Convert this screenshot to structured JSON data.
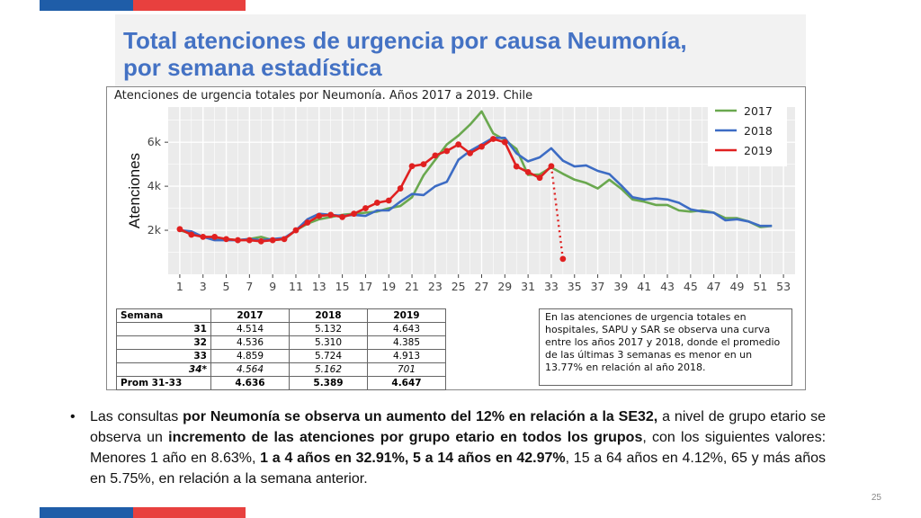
{
  "slide": {
    "title_line1": "Total atenciones de urgencia por causa Neumonía,",
    "title_line2": "por semana estadística",
    "page_number": "25",
    "colors": {
      "title": "#4472c4",
      "accent_blue": "#1f5da8",
      "accent_red": "#e8403e"
    }
  },
  "chart_data": {
    "type": "line",
    "title": "Atenciones de urgencia totales por Neumonía. Años 2017 a 2019. Chile",
    "ylabel": "Atenciones",
    "xlabel": "",
    "x_ticks": [
      "1",
      "3",
      "5",
      "7",
      "9",
      "11",
      "13",
      "15",
      "17",
      "19",
      "21",
      "23",
      "25",
      "27",
      "29",
      "31",
      "33",
      "35",
      "37",
      "39",
      "41",
      "43",
      "45",
      "47",
      "49",
      "51",
      "53"
    ],
    "y_ticks": [
      "2k",
      "4k",
      "6k"
    ],
    "xlim": [
      0,
      54
    ],
    "ylim": [
      0,
      7600
    ],
    "grid": true,
    "legend_position": "top-right",
    "series": [
      {
        "name": "2017",
        "color": "#6aa84f",
        "x": [
          1,
          2,
          3,
          4,
          5,
          6,
          7,
          8,
          9,
          10,
          11,
          12,
          13,
          14,
          15,
          16,
          17,
          18,
          19,
          20,
          21,
          22,
          23,
          24,
          25,
          26,
          27,
          28,
          29,
          30,
          31,
          32,
          33,
          34,
          35,
          36,
          37,
          38,
          39,
          40,
          41,
          42,
          43,
          44,
          45,
          46,
          47,
          48,
          49,
          50,
          51,
          52
        ],
        "y": [
          2000,
          1850,
          1700,
          1650,
          1600,
          1550,
          1600,
          1700,
          1550,
          1600,
          2000,
          2300,
          2500,
          2600,
          2700,
          2750,
          2800,
          2850,
          3000,
          3100,
          3500,
          4500,
          5200,
          5900,
          6300,
          6800,
          7400,
          6400,
          6100,
          5700,
          4514,
          4536,
          4859,
          4564,
          4300,
          4150,
          3900,
          4300,
          3900,
          3400,
          3300,
          3150,
          3150,
          2900,
          2850,
          2900,
          2800,
          2550,
          2550,
          2400,
          2150,
          2200
        ]
      },
      {
        "name": "2018",
        "color": "#3d6cc4",
        "x": [
          1,
          2,
          3,
          4,
          5,
          6,
          7,
          8,
          9,
          10,
          11,
          12,
          13,
          14,
          15,
          16,
          17,
          18,
          19,
          20,
          21,
          22,
          23,
          24,
          25,
          26,
          27,
          28,
          29,
          30,
          31,
          32,
          33,
          34,
          35,
          36,
          37,
          38,
          39,
          40,
          41,
          42,
          43,
          44,
          45,
          46,
          47,
          48,
          49,
          50,
          51,
          52
        ],
        "y": [
          2000,
          1950,
          1700,
          1550,
          1550,
          1550,
          1600,
          1550,
          1600,
          1650,
          2000,
          2500,
          2750,
          2700,
          2650,
          2700,
          2650,
          2900,
          2900,
          3300,
          3650,
          3600,
          4000,
          4200,
          5200,
          5600,
          5900,
          6200,
          6200,
          5500,
          5132,
          5310,
          5724,
          5162,
          4900,
          4950,
          4700,
          4550,
          4050,
          3500,
          3400,
          3450,
          3400,
          3250,
          2950,
          2850,
          2800,
          2450,
          2500,
          2400,
          2200,
          2200
        ]
      },
      {
        "name": "2019",
        "color": "#e02020",
        "x": [
          1,
          2,
          3,
          4,
          5,
          6,
          7,
          8,
          9,
          10,
          11,
          12,
          13,
          14,
          15,
          16,
          17,
          18,
          19,
          20,
          21,
          22,
          23,
          24,
          25,
          26,
          27,
          28,
          29,
          30,
          31,
          32,
          33
        ],
        "y": [
          2050,
          1800,
          1700,
          1700,
          1600,
          1550,
          1550,
          1500,
          1550,
          1600,
          2000,
          2350,
          2650,
          2700,
          2600,
          2750,
          3000,
          3250,
          3350,
          3900,
          4913,
          5000,
          5400,
          5600,
          5900,
          5500,
          5800,
          6150,
          6000,
          4900,
          4643,
          4385,
          4913
        ],
        "provisional": {
          "x": [
            33,
            34
          ],
          "y": [
            4913,
            701
          ]
        }
      }
    ]
  },
  "table": {
    "headers": [
      "Semana",
      "2017",
      "2018",
      "2019"
    ],
    "rows": [
      {
        "label": "31",
        "values": [
          "4.514",
          "5.132",
          "4.643"
        ]
      },
      {
        "label": "32",
        "values": [
          "4.536",
          "5.310",
          "4.385"
        ]
      },
      {
        "label": "33",
        "values": [
          "4.859",
          "5.724",
          "4.913"
        ]
      },
      {
        "label": "34*",
        "values": [
          "4.564",
          "5.162",
          "701"
        ]
      },
      {
        "label": "Prom 31-33",
        "values": [
          "4.636",
          "5.389",
          "4.647"
        ]
      }
    ]
  },
  "note": "En las atenciones de urgencia totales en hospitales, SAPU y SAR se observa una curva entre los años 2017 y 2018, donde el promedio de las últimas 3 semanas es menor en un 13.77% en relación al año 2018.",
  "bullet": {
    "t1": "Las consultas ",
    "b1": "por Neumonía se observa un aumento del 12% en relación a la SE32,",
    "t2": " a nivel de grupo etario se observa un ",
    "b2": "incremento de las atenciones por grupo etario en todos los grupos",
    "t3": ", con los siguientes valores: Menores 1 año en 8.63%, ",
    "b3": "1 a 4 años en 32.91%, 5 a 14 años en 42.97%",
    "t4": ", 15 a 64 años en 4.12%, 65 y más años en 5.75%, en relación a la semana anterior."
  }
}
